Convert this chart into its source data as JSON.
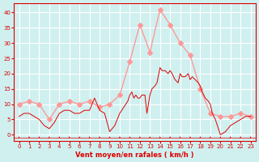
{
  "bg_color": "#d0f0f0",
  "grid_color": "#ffffff",
  "line1_color": "#ff9999",
  "line2_color": "#dd0000",
  "title": "",
  "xlabel": "Vent moyen/en rafales ( km/h )",
  "xlabel_color": "#dd0000",
  "ylabel_color": "#dd0000",
  "yticks": [
    0,
    5,
    10,
    15,
    20,
    25,
    30,
    35,
    40
  ],
  "xticks": [
    0,
    1,
    2,
    3,
    4,
    5,
    6,
    7,
    8,
    9,
    10,
    11,
    12,
    13,
    14,
    15,
    16,
    17,
    18,
    19,
    20,
    21,
    22,
    23
  ],
  "ylim": [
    -2,
    43
  ],
  "xlim": [
    -0.5,
    23.5
  ],
  "line1_x": [
    0,
    1,
    2,
    3,
    4,
    5,
    6,
    7,
    8,
    9,
    10,
    11,
    12,
    13,
    14,
    15,
    16,
    17,
    18,
    19,
    20,
    21,
    22,
    23
  ],
  "line1_y": [
    10,
    11,
    10,
    5,
    10,
    11,
    10,
    11,
    9,
    10,
    13,
    24,
    36,
    27,
    41,
    36,
    30,
    26,
    15,
    7,
    6,
    6,
    7,
    6
  ],
  "line2_x": [
    0,
    0.5,
    1,
    1.5,
    2,
    2.5,
    3,
    3.5,
    4,
    4.5,
    5,
    5.5,
    6,
    6.5,
    7,
    7.5,
    8,
    8.5,
    9,
    9.5,
    10,
    10.2,
    10.4,
    10.6,
    10.8,
    11,
    11.2,
    11.4,
    11.6,
    11.8,
    12,
    12.2,
    12.5,
    12.7,
    13,
    13.2,
    13.5,
    13.7,
    14,
    14.2,
    14.5,
    14.8,
    15,
    15.2,
    15.5,
    15.8,
    16,
    16.2,
    16.5,
    16.8,
    17,
    17.2,
    17.5,
    17.8,
    18,
    18.2,
    18.5,
    18.8,
    19,
    19.2,
    19.5,
    19.8,
    20,
    20.5,
    21,
    21.5,
    22,
    22.5,
    23
  ],
  "line2_y": [
    6,
    7,
    7,
    6,
    5,
    3,
    2,
    4,
    7,
    8,
    8,
    7,
    7,
    8,
    8,
    12,
    8,
    7,
    1,
    3,
    7,
    8,
    9,
    10,
    11,
    13,
    14,
    12,
    13,
    12,
    12,
    13,
    13,
    7,
    13,
    15,
    16,
    17,
    22,
    21,
    21,
    20,
    21,
    20,
    18,
    17,
    20,
    19,
    19,
    20,
    18,
    19,
    18,
    17,
    16,
    14,
    12,
    11,
    10,
    7,
    5,
    2,
    0,
    1,
    3,
    4,
    5,
    6,
    6
  ],
  "marker_size": 3,
  "wind_arrows": true
}
